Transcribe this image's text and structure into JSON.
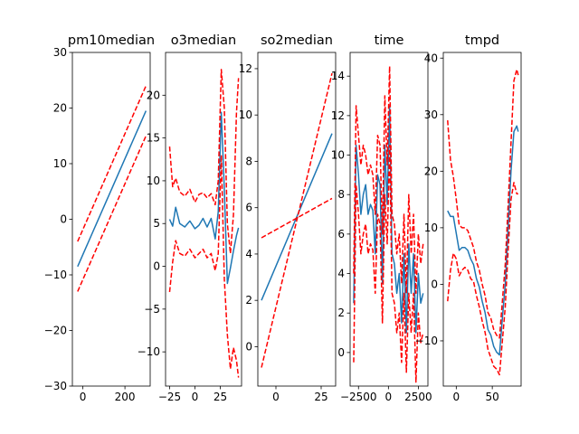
{
  "figure": {
    "background": "#ffffff"
  },
  "colors": {
    "fit": "#1f77b4",
    "band": "#ff0000",
    "axis": "#000000"
  },
  "chart_data": [
    {
      "type": "line",
      "title": "pm10median",
      "xlim": [
        -50,
        320
      ],
      "ylim": [
        -30,
        30
      ],
      "xticks": [
        0,
        200
      ],
      "yticks": [
        -30,
        -20,
        -10,
        0,
        10,
        20,
        30
      ],
      "series": [
        {
          "role": "fit",
          "x": [
            -25,
            300
          ],
          "y": [
            -8.5,
            19.5
          ]
        },
        {
          "role": "upper",
          "x": [
            -25,
            300
          ],
          "y": [
            -4.0,
            24.0
          ]
        },
        {
          "role": "lower",
          "x": [
            -25,
            300
          ],
          "y": [
            -13.0,
            15.0
          ]
        }
      ]
    },
    {
      "type": "line",
      "title": "o3median",
      "xlim": [
        -29,
        46
      ],
      "ylim": [
        -14,
        25
      ],
      "xticks": [
        -25,
        0,
        25
      ],
      "yticks": [
        -10,
        -5,
        0,
        5,
        10,
        15,
        20
      ],
      "series": [
        {
          "role": "fit",
          "x": [
            -25,
            -22,
            -19,
            -15,
            -10,
            -5,
            0,
            4,
            8,
            12,
            16,
            20,
            23,
            26,
            29,
            32,
            35,
            38,
            41,
            43
          ],
          "y": [
            5.5,
            4.7,
            6.9,
            5.0,
            4.6,
            5.3,
            4.4,
            4.8,
            5.6,
            4.6,
            5.6,
            3.2,
            6.4,
            18.0,
            9.0,
            -2.0,
            -0.2,
            1.8,
            3.6,
            4.5
          ]
        },
        {
          "role": "upper",
          "x": [
            -25,
            -22,
            -19,
            -15,
            -10,
            -5,
            0,
            4,
            8,
            12,
            16,
            20,
            23,
            26,
            29,
            32,
            35,
            38,
            41,
            43
          ],
          "y": [
            14.0,
            9.3,
            10.3,
            8.7,
            8.2,
            9.0,
            7.5,
            8.4,
            8.6,
            8.0,
            8.5,
            7.2,
            10.0,
            23.0,
            18.5,
            5.0,
            1.5,
            6.0,
            18.0,
            22.0
          ]
        },
        {
          "role": "lower",
          "x": [
            -25,
            -22,
            -19,
            -15,
            -10,
            -5,
            0,
            4,
            8,
            12,
            16,
            20,
            23,
            26,
            29,
            32,
            35,
            38,
            41,
            43
          ],
          "y": [
            -3.0,
            0.5,
            3.0,
            1.5,
            1.2,
            2.0,
            1.0,
            1.5,
            2.0,
            1.0,
            1.5,
            -0.5,
            1.5,
            13.0,
            -1.5,
            -8.0,
            -12.0,
            -9.5,
            -11.0,
            -13.0
          ]
        }
      ]
    },
    {
      "type": "line",
      "title": "so2median",
      "xlim": [
        -10,
        33
      ],
      "ylim": [
        -1.7,
        12.7
      ],
      "xticks": [
        0,
        25
      ],
      "yticks": [
        0,
        2,
        4,
        6,
        8,
        10,
        12
      ],
      "series": [
        {
          "role": "fit",
          "x": [
            -8,
            31
          ],
          "y": [
            2.0,
            9.2
          ]
        },
        {
          "role": "upper",
          "x": [
            -8,
            31
          ],
          "y": [
            -0.9,
            11.8
          ]
        },
        {
          "role": "lower",
          "x": [
            -8,
            31
          ],
          "y": [
            4.7,
            6.4
          ]
        }
      ]
    },
    {
      "type": "line",
      "title": "time",
      "xlim": [
        -3200,
        3300
      ],
      "ylim": [
        -1.7,
        15.2
      ],
      "xticks": [
        -2500,
        0,
        2500
      ],
      "yticks": [
        0,
        2,
        4,
        6,
        8,
        10,
        12,
        14
      ],
      "series": [
        {
          "role": "fit",
          "x": [
            -2900,
            -2700,
            -2500,
            -2300,
            -2100,
            -1900,
            -1700,
            -1500,
            -1300,
            -1100,
            -900,
            -700,
            -500,
            -300,
            -100,
            100,
            300,
            500,
            700,
            900,
            1100,
            1300,
            1500,
            1700,
            1900,
            2100,
            2300,
            2500,
            2700,
            2900
          ],
          "y": [
            2.5,
            10.5,
            9.0,
            7.0,
            8.0,
            8.5,
            7.0,
            7.5,
            7.2,
            5.0,
            9.0,
            8.5,
            3.5,
            10.5,
            7.5,
            12.5,
            5.0,
            4.5,
            3.0,
            4.0,
            1.5,
            5.0,
            1.0,
            5.5,
            3.0,
            5.0,
            1.0,
            4.0,
            2.5,
            3.0
          ]
        },
        {
          "role": "upper",
          "x": [
            -2900,
            -2700,
            -2500,
            -2300,
            -2100,
            -1900,
            -1700,
            -1500,
            -1300,
            -1100,
            -900,
            -700,
            -500,
            -300,
            -100,
            100,
            300,
            500,
            700,
            900,
            1100,
            1300,
            1500,
            1700,
            1900,
            2100,
            2300,
            2500,
            2700,
            2900
          ],
          "y": [
            4.0,
            12.5,
            11.0,
            9.5,
            10.5,
            10.0,
            9.0,
            9.5,
            9.0,
            7.0,
            11.0,
            10.5,
            6.0,
            13.0,
            9.5,
            14.5,
            7.0,
            6.5,
            5.0,
            6.0,
            3.5,
            7.0,
            3.0,
            8.0,
            5.0,
            7.0,
            3.0,
            6.0,
            4.5,
            5.5
          ]
        },
        {
          "role": "lower",
          "x": [
            -2900,
            -2700,
            -2500,
            -2300,
            -2100,
            -1900,
            -1700,
            -1500,
            -1300,
            -1100,
            -900,
            -700,
            -500,
            -300,
            -100,
            100,
            300,
            500,
            700,
            900,
            1100,
            1300,
            1500,
            1700,
            1900,
            2100,
            2300,
            2500,
            2700,
            2900
          ],
          "y": [
            -0.5,
            8.5,
            7.0,
            5.0,
            6.0,
            6.5,
            5.0,
            5.5,
            5.2,
            3.0,
            7.0,
            6.5,
            1.5,
            8.0,
            5.5,
            10.5,
            3.0,
            2.5,
            1.0,
            2.0,
            -0.5,
            3.0,
            -1.0,
            3.0,
            1.0,
            3.0,
            -1.5,
            2.0,
            0.5,
            1.0
          ]
        }
      ]
    },
    {
      "type": "line",
      "title": "tmpd",
      "xlim": [
        -18,
        90
      ],
      "ylim": [
        -18,
        41
      ],
      "xticks": [
        0,
        50
      ],
      "yticks": [
        -10,
        0,
        10,
        20,
        30,
        40
      ],
      "series": [
        {
          "role": "fit",
          "x": [
            -12,
            -8,
            -4,
            0,
            4,
            8,
            12,
            16,
            20,
            24,
            28,
            32,
            36,
            40,
            44,
            48,
            52,
            56,
            60,
            64,
            68,
            72,
            76,
            80,
            84,
            86
          ],
          "y": [
            13.0,
            12.0,
            12.0,
            9.0,
            6.0,
            6.5,
            6.5,
            6.0,
            4.5,
            3.5,
            1.0,
            -0.5,
            -3.0,
            -5.0,
            -8.0,
            -9.0,
            -11.0,
            -12.0,
            -12.5,
            -6.0,
            0.0,
            10.0,
            20.0,
            27.0,
            28.0,
            27.0
          ]
        },
        {
          "role": "upper",
          "x": [
            -12,
            -8,
            -4,
            0,
            4,
            8,
            12,
            16,
            20,
            24,
            28,
            32,
            36,
            40,
            44,
            48,
            52,
            56,
            60,
            64,
            68,
            72,
            76,
            80,
            84,
            86
          ],
          "y": [
            29.0,
            22.0,
            19.0,
            15.0,
            10.5,
            10.0,
            10.0,
            9.5,
            8.0,
            6.5,
            4.0,
            2.5,
            0.0,
            -2.0,
            -5.0,
            -6.0,
            -8.0,
            -9.0,
            -9.5,
            -3.0,
            3.5,
            14.0,
            25.0,
            36.0,
            38.0,
            37.0
          ]
        },
        {
          "role": "lower",
          "x": [
            -12,
            -8,
            -4,
            0,
            4,
            8,
            12,
            16,
            20,
            24,
            28,
            32,
            36,
            40,
            44,
            48,
            52,
            56,
            60,
            64,
            68,
            72,
            76,
            80,
            84,
            86
          ],
          "y": [
            -3.0,
            2.5,
            5.5,
            4.5,
            1.5,
            2.5,
            3.0,
            2.5,
            1.0,
            0.5,
            -2.0,
            -4.0,
            -6.5,
            -8.5,
            -11.5,
            -13.0,
            -14.5,
            -15.0,
            -16.0,
            -10.0,
            -4.0,
            6.0,
            15.0,
            18.0,
            16.0,
            16.0
          ]
        }
      ]
    }
  ]
}
